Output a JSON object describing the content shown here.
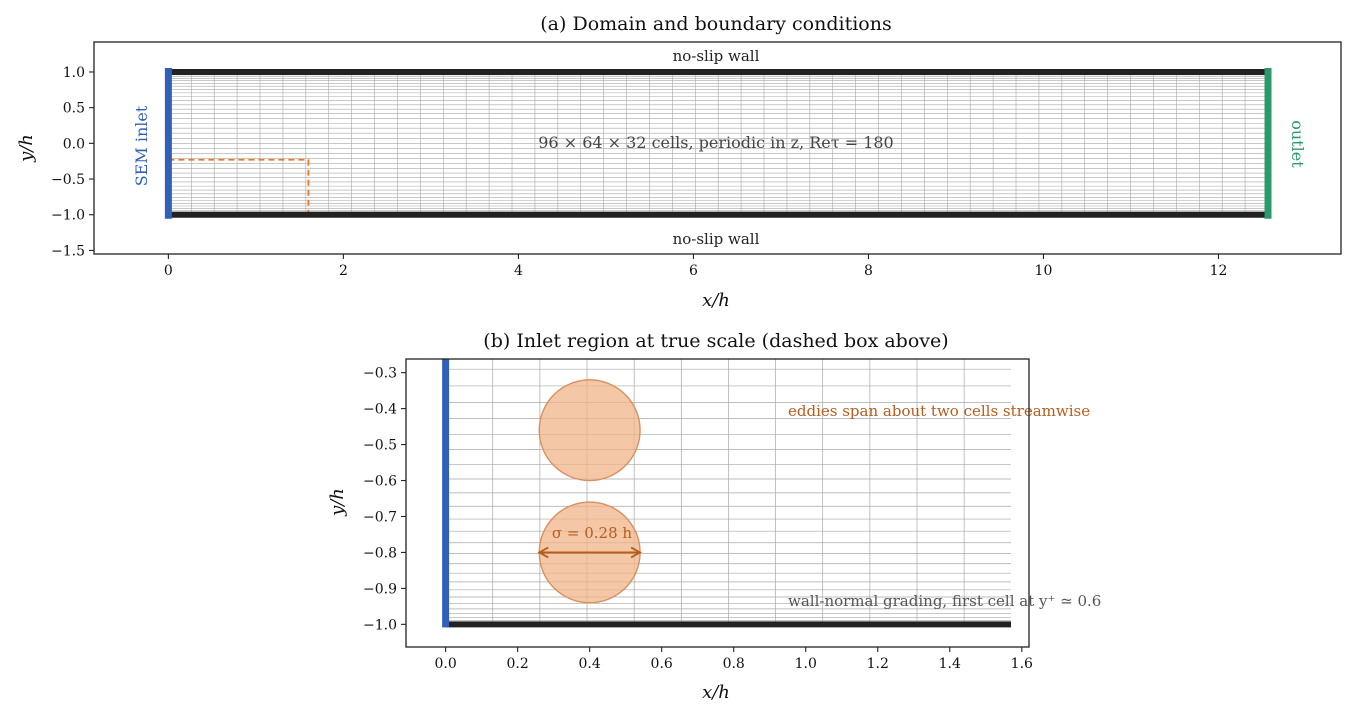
{
  "panel_a": {
    "title": "(a) Domain and boundary conditions",
    "xlabel": "x/h",
    "ylabel": "y/h",
    "xlim": [
      -0.85,
      13.4
    ],
    "ylim": [
      -1.55,
      1.42
    ],
    "xticks": [
      0,
      2,
      4,
      6,
      8,
      10,
      12
    ],
    "xtick_labels": [
      "0",
      "2",
      "4",
      "6",
      "8",
      "10",
      "12"
    ],
    "yticks": [
      1.0,
      0.5,
      0.0,
      -0.5,
      -1.0,
      -1.5
    ],
    "ytick_labels": [
      "1.0",
      "0.5",
      "0.0",
      "−0.5",
      "−1.0",
      "−1.5"
    ],
    "domain_x": [
      0,
      12.566
    ],
    "domain_y": [
      -1,
      1
    ],
    "top_wall_label": "no-slip wall",
    "bottom_wall_label": "no-slip wall",
    "inlet_label": "SEM inlet",
    "outlet_label": "outlet",
    "mesh_label": "96 × 64 × 32 cells, periodic in z, Reτ = 180",
    "dashed_box": {
      "x": [
        0,
        1.6
      ],
      "y": [
        -1,
        -0.23
      ]
    }
  },
  "panel_b": {
    "title": "(b) Inlet region at true scale (dashed box above)",
    "xlabel": "x/h",
    "ylabel": "y/h",
    "xlim": [
      -0.11,
      1.62
    ],
    "ylim": [
      -1.063,
      -0.262
    ],
    "xticks": [
      0.0,
      0.2,
      0.4,
      0.6,
      0.8,
      1.0,
      1.2,
      1.4,
      1.6
    ],
    "xtick_labels": [
      "0.0",
      "0.2",
      "0.4",
      "0.6",
      "0.8",
      "1.0",
      "1.2",
      "1.4",
      "1.6"
    ],
    "yticks": [
      -0.3,
      -0.4,
      -0.5,
      -0.6,
      -0.7,
      -0.8,
      -0.9,
      -1.0
    ],
    "ytick_labels": [
      "−0.3",
      "−0.4",
      "−0.5",
      "−0.6",
      "−0.7",
      "−0.8",
      "−0.9",
      "−1.0"
    ],
    "eddies": [
      {
        "x": 0.4,
        "y": -0.46,
        "radius": 0.14
      },
      {
        "x": 0.4,
        "y": -0.8,
        "radius": 0.14
      }
    ],
    "sigma_label": "σ = 0.28 h",
    "sigma_arrow": {
      "x": [
        0.26,
        0.54
      ],
      "y": -0.8
    },
    "eddy_label": "eddies span about two cells streamwise",
    "grading_label": "wall-normal grading, first cell at y⁺ ≃ 0.6"
  },
  "colors": {
    "wall": "#222222",
    "inlet": "#3060b8",
    "outlet": "#2a9a6c",
    "dashed_box": "#f07820",
    "eddy_fill": "#f0b488",
    "eddy_edge": "#d89060",
    "eddy_text": "#b85c1c",
    "mesh": "#a8a8a8",
    "grading_text": "#555555"
  }
}
